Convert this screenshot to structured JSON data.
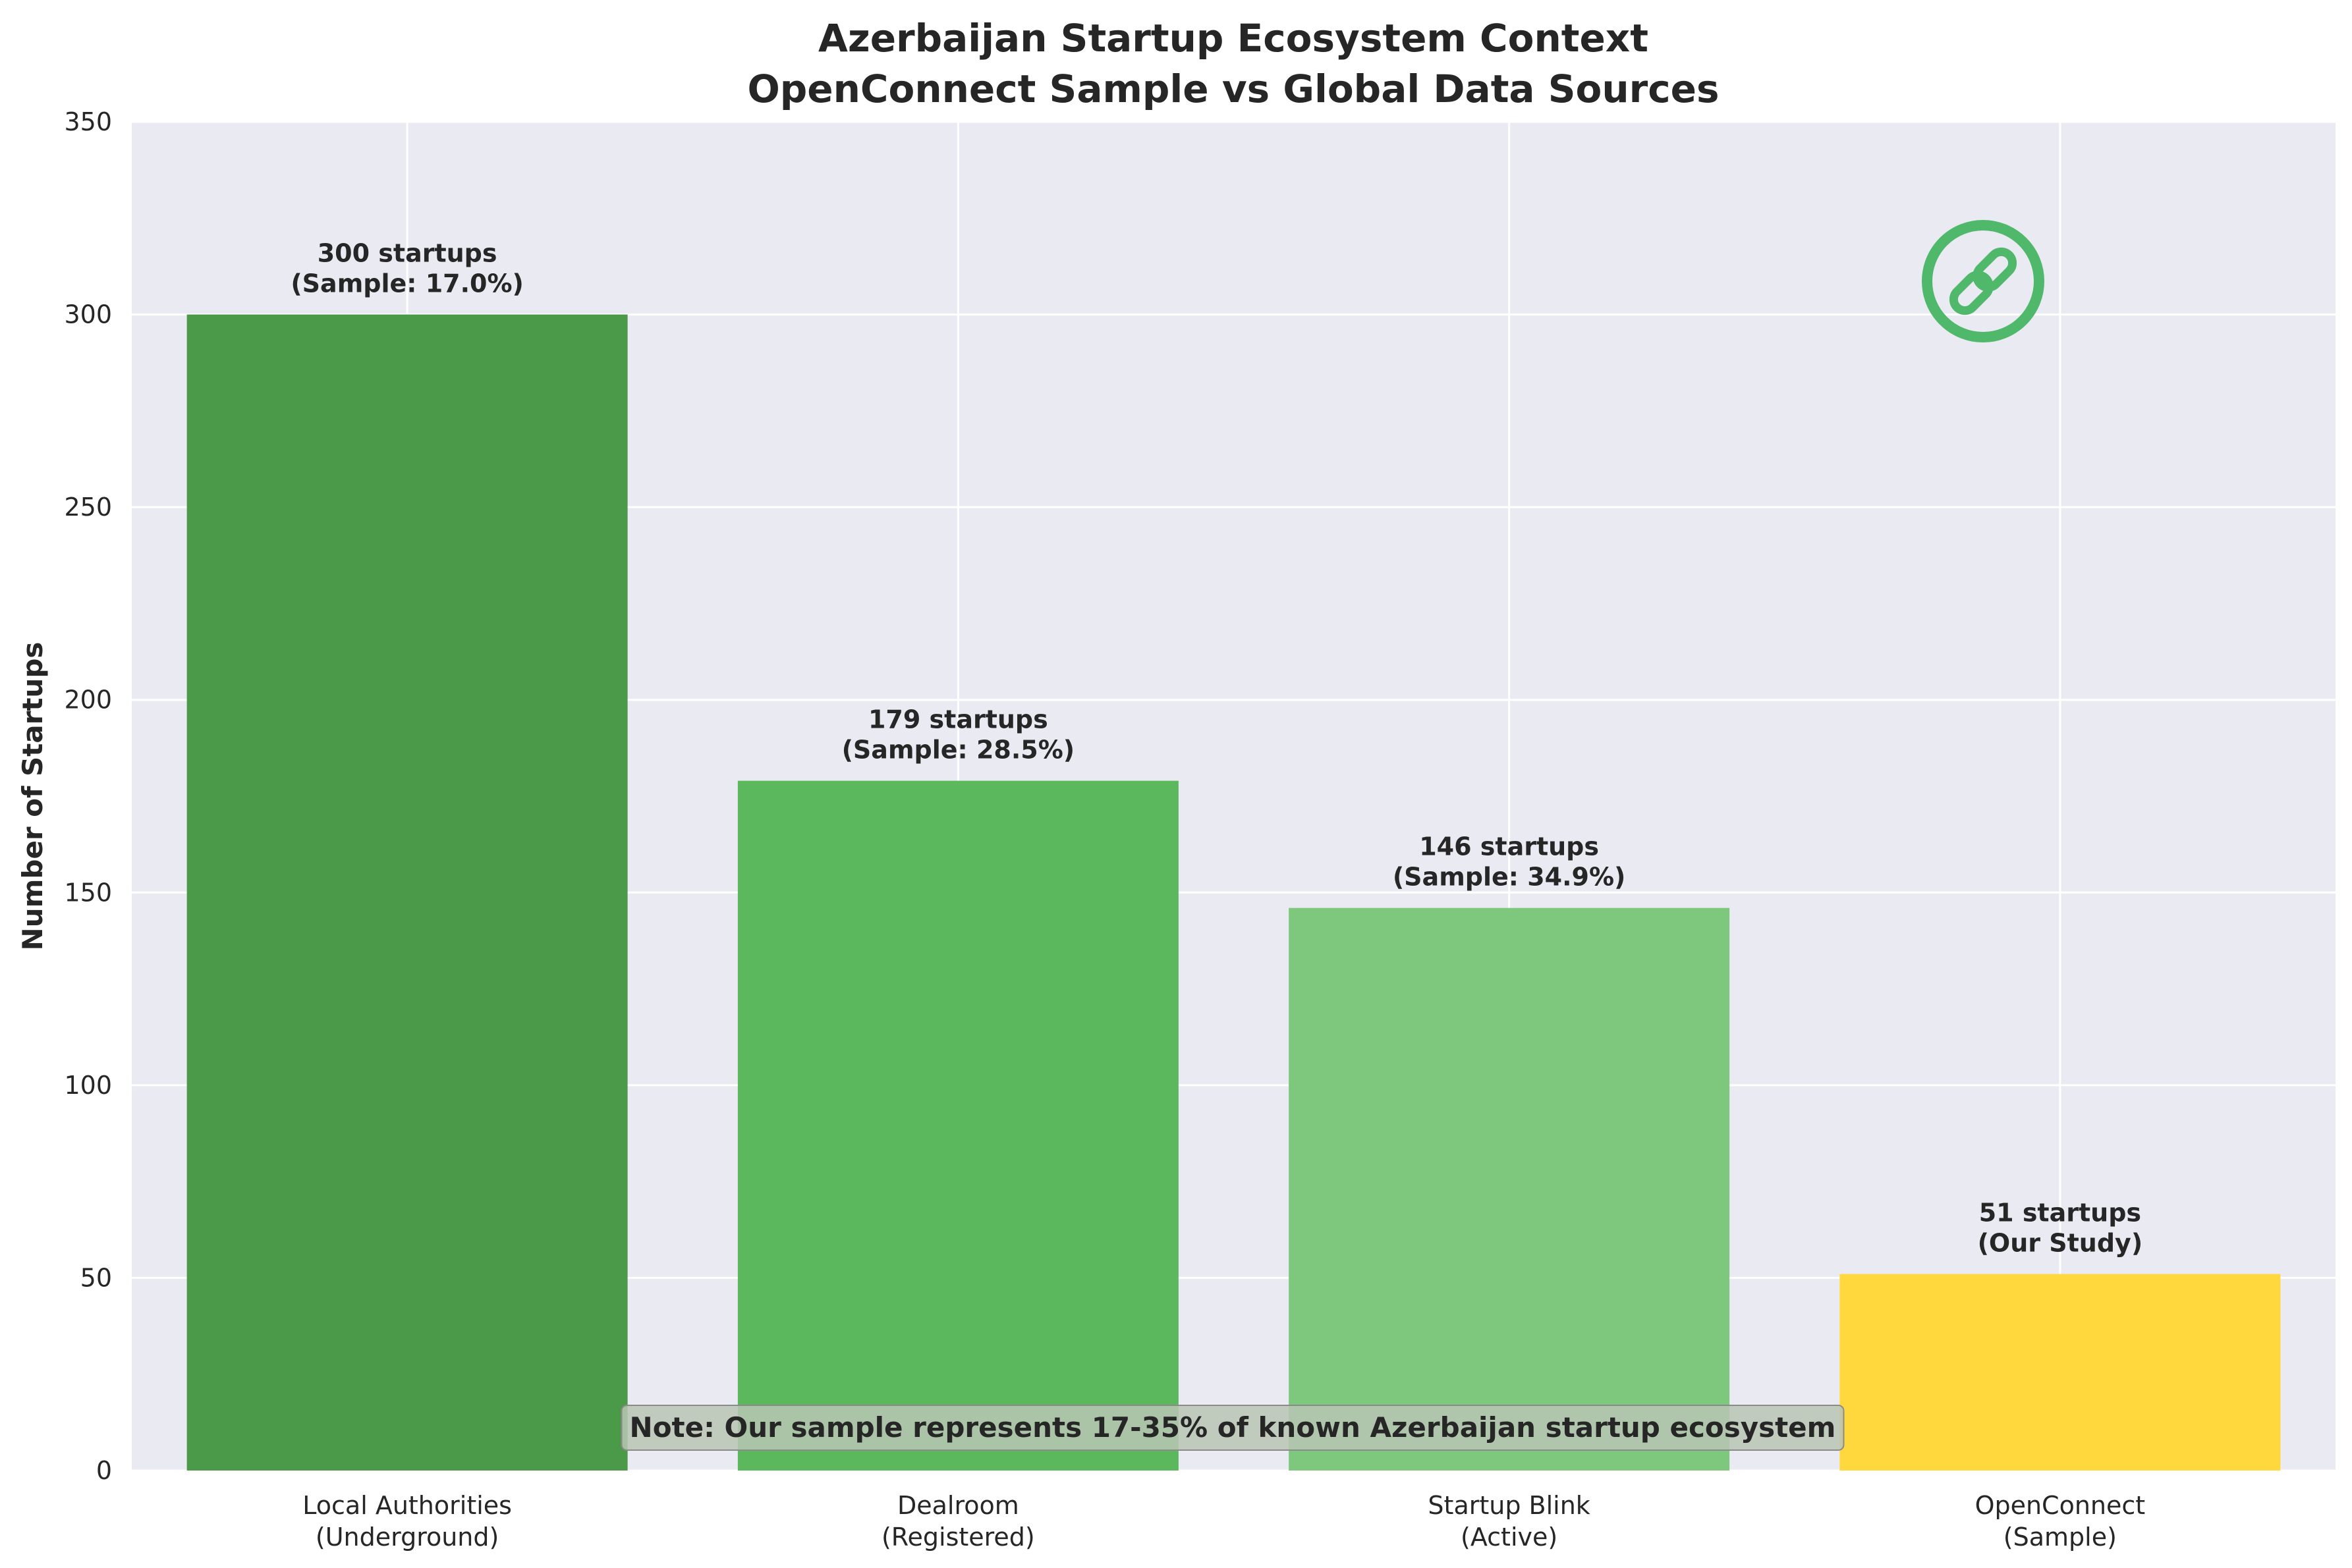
{
  "chart_data": {
    "type": "bar",
    "title_line1": "Azerbaijan Startup Ecosystem Context",
    "title_line2": "OpenConnect Sample vs Global Data Sources",
    "ylabel": "Number of Startups",
    "xlabel": "",
    "ylim": [
      0,
      350
    ],
    "yticks": [
      0,
      50,
      100,
      150,
      200,
      250,
      300,
      350
    ],
    "grid": true,
    "categories": [
      [
        "Local Authorities",
        "(Underground)"
      ],
      [
        "Dealroom",
        "(Registered)"
      ],
      [
        "Startup Blink",
        "(Active)"
      ],
      [
        "OpenConnect",
        "(Sample)"
      ]
    ],
    "values": [
      300,
      179,
      146,
      51
    ],
    "bar_colors": [
      "#4a9a4a",
      "#5cb85c",
      "#7dc87d",
      "#fed83d"
    ],
    "bar_labels": [
      [
        "300 startups",
        "(Sample: 17.0%)"
      ],
      [
        "179 startups",
        "(Sample: 28.5%)"
      ],
      [
        "146 startups",
        "(Sample: 34.9%)"
      ],
      [
        "51 startups",
        "(Our Study)"
      ]
    ],
    "note": "Note: Our sample represents 17-35% of known Azerbaijan startup ecosystem",
    "plot_background": "#eaeaf2",
    "grid_color": "#ffffff",
    "logo_color": "#4fb86a",
    "logo_icon": "link-icon"
  }
}
